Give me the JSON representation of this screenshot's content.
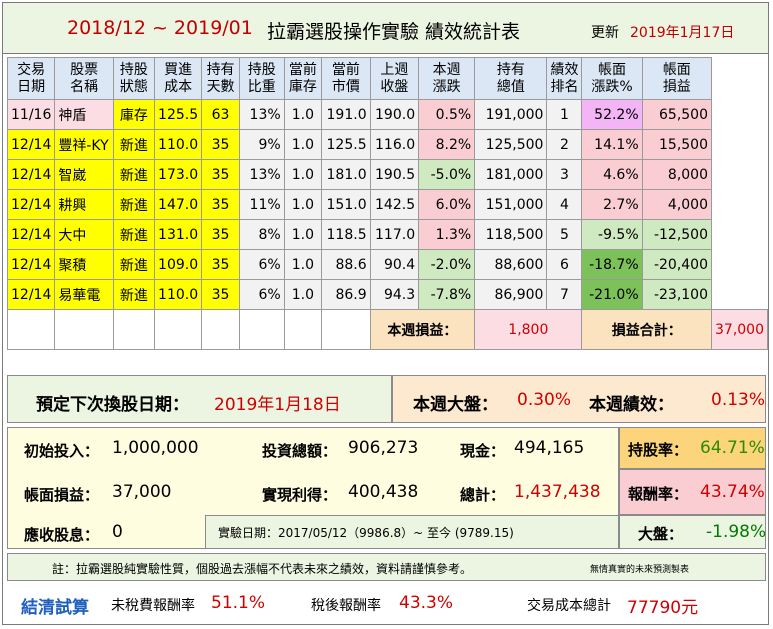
{
  "title": {
    "period": "2018/12 ~ 2019/01",
    "subtitle": "拉霸選股操作實驗  績效統計表",
    "updated_label": "更新",
    "updated_date": "2019年1月17日"
  },
  "headers": [
    [
      "交易",
      "日期"
    ],
    [
      "股票",
      "名稱"
    ],
    [
      "持股",
      "狀態"
    ],
    [
      "買進",
      "成本"
    ],
    [
      "持有",
      "天數"
    ],
    [
      "持股",
      "比重"
    ],
    [
      "當前",
      "庫存"
    ],
    [
      "當前",
      "市價"
    ],
    [
      "上週",
      "收盤"
    ],
    [
      "本週",
      "漲跌"
    ],
    [
      "持有",
      "總值"
    ],
    [
      "績效",
      "排名"
    ],
    [
      "帳面",
      "漲跌%"
    ],
    [
      "帳面",
      "損益"
    ]
  ],
  "rows": [
    {
      "date": "11/16",
      "name": "神盾",
      "status": "庫存",
      "cost": "125.5",
      "days": "63",
      "weight": "13%",
      "inv": "1.0",
      "price": "191.0",
      "last": "190.0",
      "chg": "0.5%",
      "value": "191,000",
      "rank": "1",
      "pnl_pct": "52.2%",
      "pnl": "65,500"
    },
    {
      "date": "12/14",
      "name": "豐祥-KY",
      "status": "新進",
      "cost": "110.0",
      "days": "35",
      "weight": "9%",
      "inv": "1.0",
      "price": "125.5",
      "last": "116.0",
      "chg": "8.2%",
      "value": "125,500",
      "rank": "2",
      "pnl_pct": "14.1%",
      "pnl": "15,500"
    },
    {
      "date": "12/14",
      "name": "智崴",
      "status": "新進",
      "cost": "173.0",
      "days": "35",
      "weight": "13%",
      "inv": "1.0",
      "price": "181.0",
      "last": "190.5",
      "chg": "-5.0%",
      "value": "181,000",
      "rank": "3",
      "pnl_pct": "4.6%",
      "pnl": "8,000"
    },
    {
      "date": "12/14",
      "name": "耕興",
      "status": "新進",
      "cost": "147.0",
      "days": "35",
      "weight": "11%",
      "inv": "1.0",
      "price": "151.0",
      "last": "142.5",
      "chg": "6.0%",
      "value": "151,000",
      "rank": "4",
      "pnl_pct": "2.7%",
      "pnl": "4,000"
    },
    {
      "date": "12/14",
      "name": "大中",
      "status": "新進",
      "cost": "131.0",
      "days": "35",
      "weight": "8%",
      "inv": "1.0",
      "price": "118.5",
      "last": "117.0",
      "chg": "1.3%",
      "value": "118,500",
      "rank": "5",
      "pnl_pct": "-9.5%",
      "pnl": "-12,500"
    },
    {
      "date": "12/14",
      "name": "聚積",
      "status": "新進",
      "cost": "109.0",
      "days": "35",
      "weight": "6%",
      "inv": "1.0",
      "price": "88.6",
      "last": "90.4",
      "chg": "-2.0%",
      "value": "88,600",
      "rank": "6",
      "pnl_pct": "-18.7%",
      "pnl": "-20,400"
    },
    {
      "date": "12/14",
      "name": "易華電",
      "status": "新進",
      "cost": "110.0",
      "days": "35",
      "weight": "6%",
      "inv": "1.0",
      "price": "86.9",
      "last": "94.3",
      "chg": "-7.8%",
      "value": "86,900",
      "rank": "7",
      "pnl_pct": "-21.0%",
      "pnl": "-23,100"
    }
  ],
  "summary": {
    "week_pnl_label": "本週損益：",
    "week_pnl": "1,800",
    "total_pnl_label": "損益合計：",
    "total_pnl": "37,000"
  },
  "next_change": {
    "label": "預定下次換股日期：",
    "date": "2019年1月18日"
  },
  "market": {
    "label": "本週大盤：",
    "value": "0.30%",
    "perf_label": "本週績效：",
    "perf": "0.13%"
  },
  "stats": {
    "initial_label": "初始投入：",
    "initial": "1,000,000",
    "invest_label": "投資總額：",
    "invest": "906,273",
    "cash_label": "現金：",
    "cash": "494,165",
    "holding_label": "持股率：",
    "holding": "64.71%",
    "book_label": "帳面損益：",
    "book": "37,000",
    "realized_label": "實現利得：",
    "realized": "400,438",
    "total_label": "總計：",
    "total": "1,437,438",
    "return_label": "報酬率：",
    "return": "43.74%",
    "dividend_label": "應收股息：",
    "dividend": "0",
    "exp_label": "實驗日期：2017/05/12（9986.8）~ 至今    (9789.15)",
    "index_label": "大盤：",
    "index": "-1.98%"
  },
  "note": {
    "text": "註：拉霸選股純實驗性質，個股過去漲幅不代表未來之績效，資料請謹慎參考。",
    "small": "無情真實的未來預測製表"
  },
  "footer": {
    "settle": "結清試算",
    "pretax_label": "未稅費報酬率",
    "pretax": "51.1%",
    "aftertax_label": "稅後報酬率",
    "aftertax": "43.3%",
    "cost_label": "交易成本總計",
    "cost": "77790元"
  },
  "colors": {
    "title_red": "#c00000",
    "header_blue": "#dbe7f5",
    "yellow": "#ffff00",
    "pink": "#f9cdd2",
    "green": "#cfe9c1",
    "dark_green": "#7cc15a",
    "magenta": "#f4b5f6",
    "value_red": "#d00000",
    "value_green": "#007a00",
    "footer_blue": "#1f5fbf"
  }
}
